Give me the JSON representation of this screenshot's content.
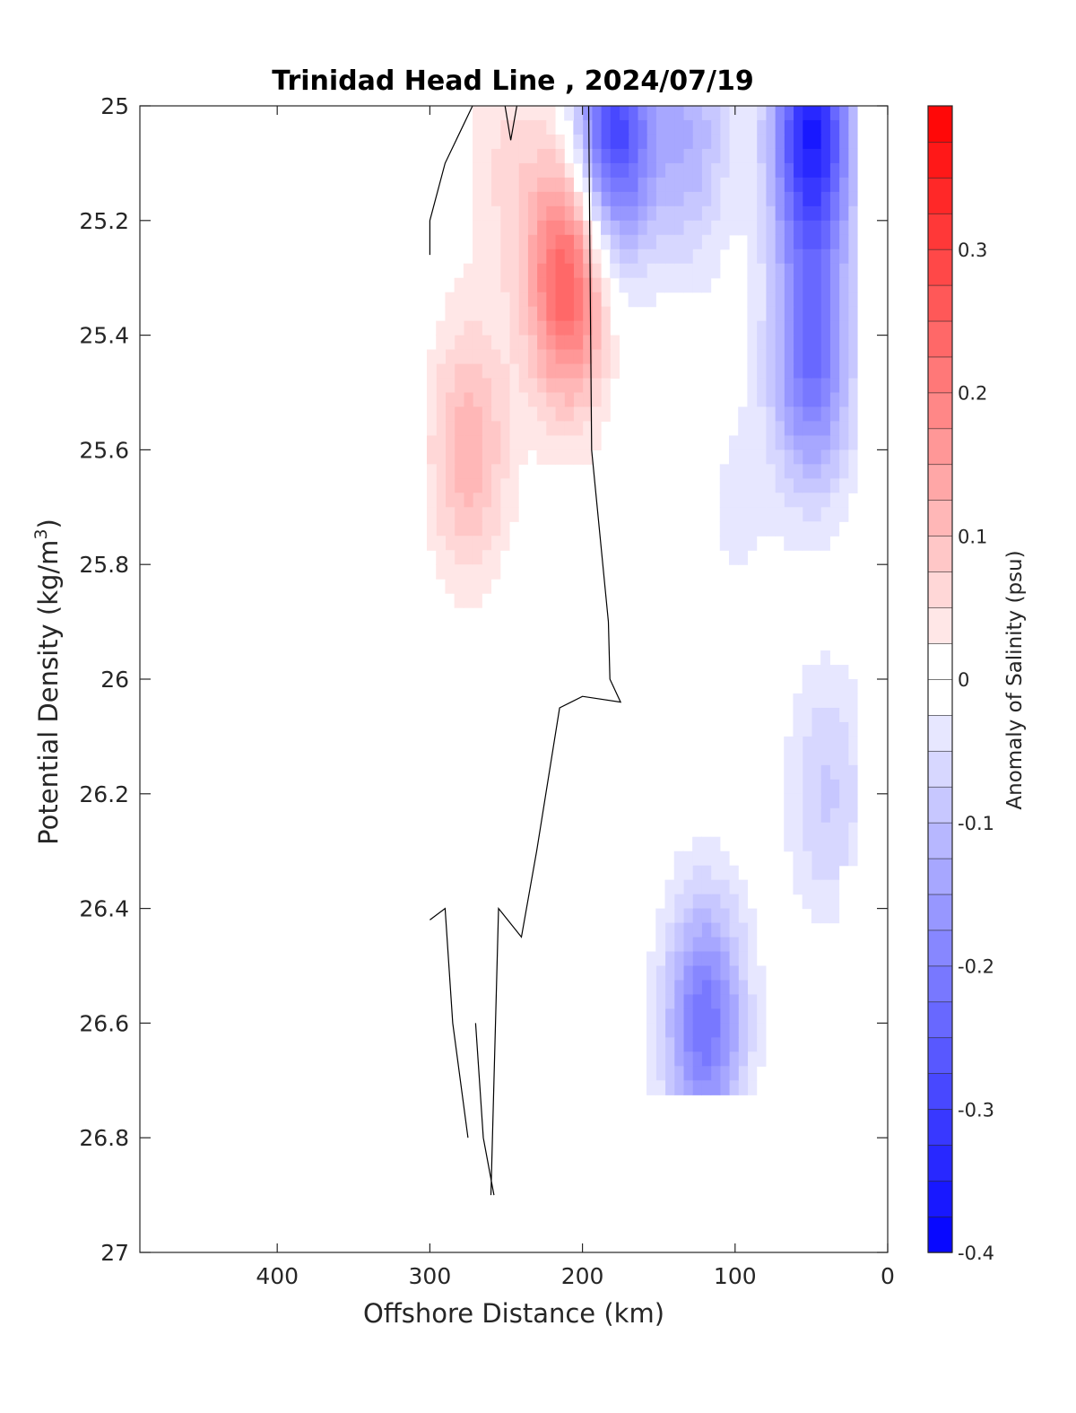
{
  "chart_data": {
    "type": "heatmap",
    "subtype": "filled-contour",
    "title": "Trinidad Head Line , 2024/07/19",
    "xlabel": "Offshore Distance (km)",
    "ylabel_main": "Potential Density (kg/m",
    "ylabel_sup": "3",
    "ylabel_end": ")",
    "colorbar_label": "Anomaly of Salinity (psu)",
    "xlim": [
      490,
      0
    ],
    "x_reversed": true,
    "ylim": [
      25,
      27
    ],
    "y_reversed": true,
    "xticks": [
      400,
      300,
      200,
      100,
      0
    ],
    "yticks": [
      "25",
      "25.2",
      "25.4",
      "25.6",
      "25.8",
      "26",
      "26.2",
      "26.4",
      "26.6",
      "26.8",
      "27"
    ],
    "colorbar_range": [
      -0.4,
      0.4
    ],
    "colorbar_step": 0.025,
    "colorbar_ticks": [
      "0.3",
      "0.2",
      "0.1",
      "0",
      "-0.1",
      "-0.2",
      "-0.3",
      "-0.4"
    ],
    "colormap": "blue-white-red",
    "zero_contour_color": "#000000",
    "data_extent_x": [
      300,
      20
    ],
    "data_extent_y": [
      25,
      26.9
    ],
    "anomaly_features": [
      {
        "x": 275,
        "y": 25.6,
        "value": 0.12
      },
      {
        "x": 250,
        "y": 25.1,
        "value": 0.05
      },
      {
        "x": 210,
        "y": 25.3,
        "value": 0.26
      },
      {
        "x": 180,
        "y": 25.05,
        "value": -0.3
      },
      {
        "x": 130,
        "y": 25.05,
        "value": -0.12
      },
      {
        "x": 100,
        "y": 25.7,
        "value": -0.03
      },
      {
        "x": 50,
        "y": 25.05,
        "value": -0.35
      },
      {
        "x": 50,
        "y": 25.45,
        "value": -0.22
      },
      {
        "x": 40,
        "y": 26.2,
        "value": -0.08
      },
      {
        "x": 120,
        "y": 26.6,
        "value": -0.22
      },
      {
        "x": 280,
        "y": 26.6,
        "value": -0.02
      }
    ]
  }
}
